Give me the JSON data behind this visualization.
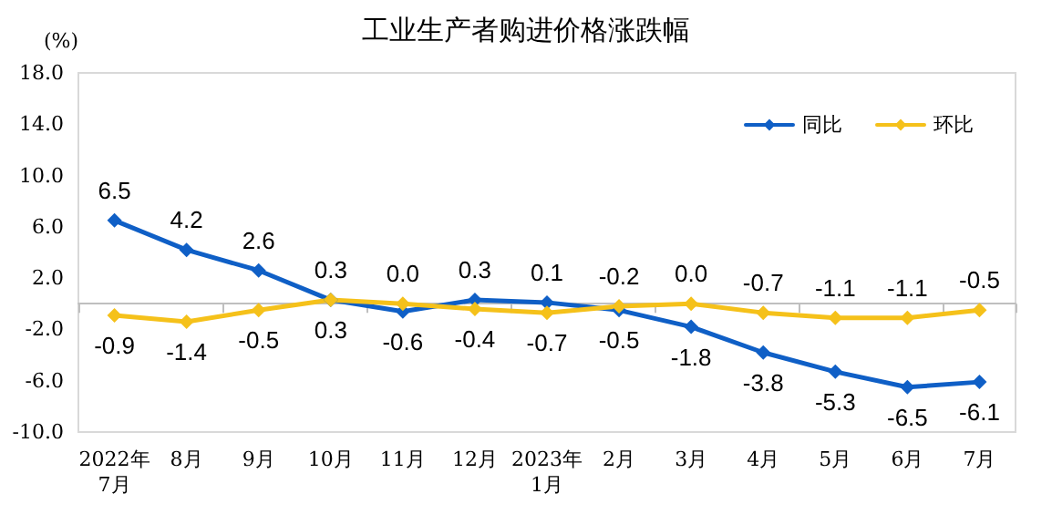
{
  "chart_data": {
    "type": "line",
    "title": "工业生产者购进价格涨跌幅",
    "ylabel": "(%)",
    "categories": [
      "2022年\n7月",
      "8月",
      "9月",
      "10月",
      "11月",
      "12月",
      "2023年\n1月",
      "2月",
      "3月",
      "4月",
      "5月",
      "6月",
      "7月"
    ],
    "series": [
      {
        "name": "同比",
        "color": "#0f5fc6",
        "values": [
          6.5,
          4.2,
          2.6,
          0.3,
          -0.6,
          0.3,
          0.1,
          -0.5,
          -1.8,
          -3.8,
          -5.3,
          -6.5,
          -6.1
        ],
        "value_labels": [
          "6.5",
          "4.2",
          "2.6",
          "0.3",
          "-0.6",
          "0.3",
          "0.1",
          "-0.5",
          "-1.8",
          "-3.8",
          "-5.3",
          "-6.5",
          "-6.1"
        ]
      },
      {
        "name": "环比",
        "color": "#f5c11a",
        "values": [
          -0.9,
          -1.4,
          -0.5,
          0.3,
          0.0,
          -0.4,
          -0.7,
          -0.2,
          0.0,
          -0.7,
          -1.1,
          -1.1,
          -0.5
        ],
        "value_labels": [
          "-0.9",
          "-1.4",
          "-0.5",
          "0.3",
          "0.0",
          "-0.4",
          "-0.7",
          "-0.2",
          "0.0",
          "-0.7",
          "-1.1",
          "-1.1",
          "-0.5"
        ]
      }
    ],
    "ylim": [
      -10,
      18
    ],
    "yticks": [
      {
        "value": -10,
        "label": "-10.0"
      },
      {
        "value": -6,
        "label": "-6.0"
      },
      {
        "value": -2,
        "label": "-2.0"
      },
      {
        "value": 2,
        "label": "2.0"
      },
      {
        "value": 6,
        "label": "6.0"
      },
      {
        "value": 10,
        "label": "10.0"
      },
      {
        "value": 14,
        "label": "14.0"
      },
      {
        "value": 18,
        "label": "18.0"
      }
    ],
    "legend": "top right",
    "marker": "diamond",
    "line_style": "solid",
    "grid": false
  }
}
